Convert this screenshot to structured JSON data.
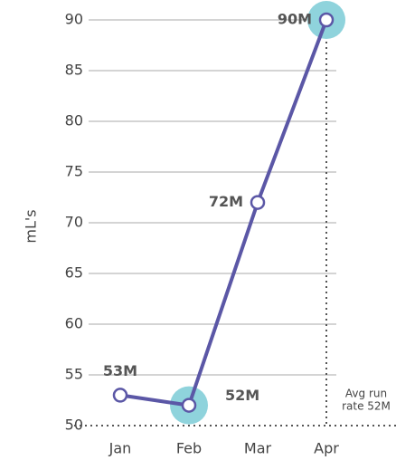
{
  "chart_data": {
    "type": "line",
    "y_label": "mL's",
    "categories": [
      "Jan",
      "Feb",
      "Mar",
      "Apr"
    ],
    "series": [
      {
        "name": "mL's",
        "color": "#5b57a6",
        "values": [
          53,
          52,
          72,
          90
        ],
        "value_labels": [
          "53M",
          "52M",
          "72M",
          "90M"
        ]
      }
    ],
    "ylim": [
      50,
      90
    ],
    "yticks": [
      50,
      55,
      60,
      65,
      70,
      75,
      80,
      85,
      90
    ],
    "grid": true,
    "highlight_points": [
      1,
      3
    ],
    "highlight_color": "#8fd3dc",
    "annotation": [
      "Avg run",
      "rate 52M"
    ]
  }
}
